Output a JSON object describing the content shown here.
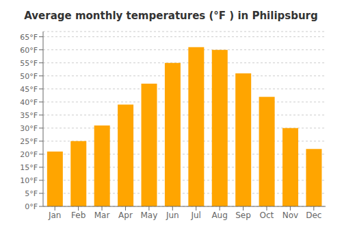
{
  "chart_data": {
    "type": "bar",
    "title": "Average monthly temperatures (°F ) in Philipsburg",
    "categories": [
      "Jan",
      "Feb",
      "Mar",
      "Apr",
      "May",
      "Jun",
      "Jul",
      "Aug",
      "Sep",
      "Oct",
      "Nov",
      "Dec"
    ],
    "values": [
      21,
      25,
      31,
      39,
      47,
      55,
      61,
      60,
      51,
      42,
      30,
      22
    ],
    "color": "#FFA500",
    "ylim": [
      0,
      67
    ],
    "yticks": [
      {
        "value": 0,
        "label": "0°F"
      },
      {
        "value": 5,
        "label": "5°F"
      },
      {
        "value": 10,
        "label": "10°F"
      },
      {
        "value": 15,
        "label": "15°F"
      },
      {
        "value": 20,
        "label": "20°F"
      },
      {
        "value": 25,
        "label": "25°F"
      },
      {
        "value": 30,
        "label": "30°F"
      },
      {
        "value": 35,
        "label": "35°F"
      },
      {
        "value": 40,
        "label": "40°F"
      },
      {
        "value": 45,
        "label": "45°F"
      },
      {
        "value": 50,
        "label": "50°F"
      },
      {
        "value": 55,
        "label": "55°F"
      },
      {
        "value": 60,
        "label": "60°F"
      },
      {
        "value": 65,
        "label": "65°F"
      }
    ],
    "grid": true
  }
}
